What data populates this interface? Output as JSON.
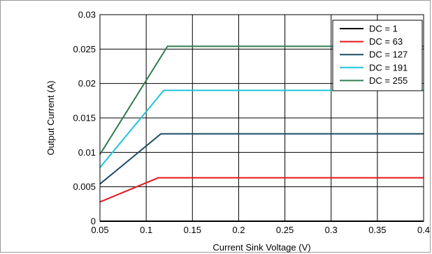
{
  "chart_data": {
    "type": "line",
    "xlabel": "Current Sink Voltage (V)",
    "ylabel": "Output Current (A)",
    "xlim": [
      0.05,
      0.4
    ],
    "ylim": [
      0,
      0.03
    ],
    "x_ticks": [
      "0.05",
      "0.1",
      "0.15",
      "0.2",
      "0.25",
      "0.3",
      "0.35",
      "0.4"
    ],
    "y_ticks": [
      "0",
      "0.005",
      "0.01",
      "0.015",
      "0.02",
      "0.025",
      "0.03"
    ],
    "grid": true,
    "legend_position": "top-right",
    "series": [
      {
        "name": "DC = 1",
        "color": "#000000",
        "x": [
          0.05,
          0.1,
          0.4
        ],
        "y": [
          0.0,
          0.0,
          0.0
        ]
      },
      {
        "name": "DC = 63",
        "color": "#e8171a",
        "x": [
          0.05,
          0.113,
          0.4
        ],
        "y": [
          0.0028,
          0.0063,
          0.0063
        ]
      },
      {
        "name": "DC = 127",
        "color": "#1d4b66",
        "x": [
          0.05,
          0.116,
          0.4
        ],
        "y": [
          0.0054,
          0.0127,
          0.0127
        ]
      },
      {
        "name": "DC = 191",
        "color": "#1dc4d9",
        "x": [
          0.05,
          0.119,
          0.4
        ],
        "y": [
          0.0078,
          0.019,
          0.019
        ]
      },
      {
        "name": "DC = 255",
        "color": "#2e7d4e",
        "x": [
          0.05,
          0.123,
          0.4
        ],
        "y": [
          0.0097,
          0.0254,
          0.0254
        ]
      }
    ]
  }
}
